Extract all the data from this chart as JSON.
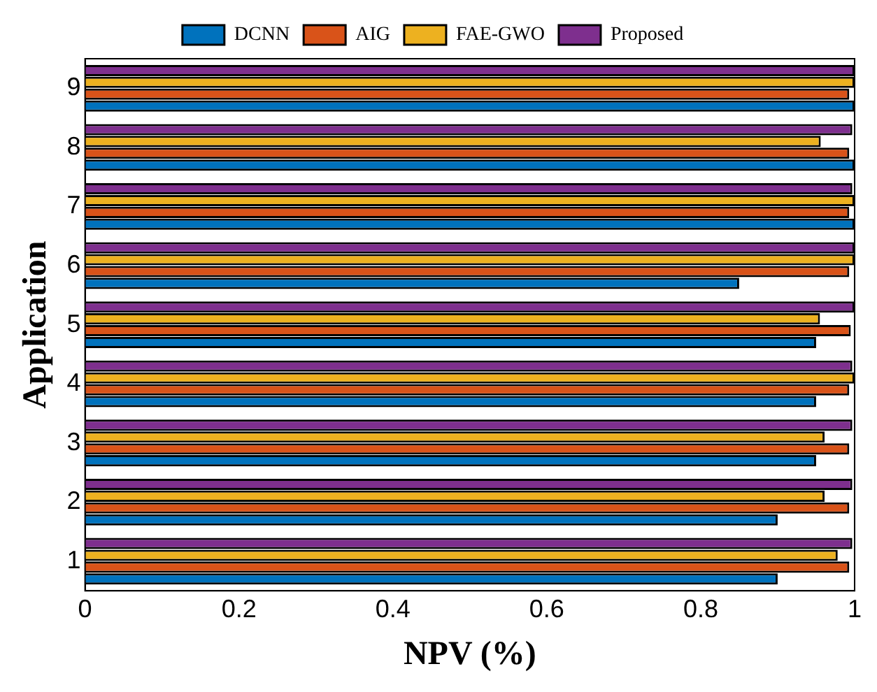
{
  "chart_data": {
    "type": "bar",
    "orientation": "horizontal",
    "xlabel": "NPV (%)",
    "ylabel": "Application",
    "categories": [
      "9",
      "8",
      "7",
      "6",
      "5",
      "4",
      "3",
      "2",
      "1"
    ],
    "series": [
      {
        "name": "DCNN",
        "color": "#0072bd",
        "values": [
          1,
          1,
          1,
          0.85,
          0.95,
          0.95,
          0.95,
          0.9,
          0.9
        ]
      },
      {
        "name": "AIG",
        "color": "#d95319",
        "values": [
          0.993,
          0.993,
          0.993,
          0.993,
          0.995,
          0.993,
          0.993,
          0.993,
          0.993
        ]
      },
      {
        "name": "FAE-GWO",
        "color": "#edb120",
        "values": [
          1,
          0.956,
          1,
          1,
          0.955,
          1,
          0.961,
          0.961,
          0.978
        ]
      },
      {
        "name": "Proposed",
        "color": "#7e2f8e",
        "values": [
          1,
          0.997,
          0.997,
          1,
          1,
          0.997,
          0.997,
          0.997,
          0.997
        ]
      }
    ],
    "xlim": [
      0,
      1
    ],
    "xticks": [
      0,
      0.2,
      0.4,
      0.6,
      0.8,
      1
    ],
    "grid": false,
    "legend": "top"
  }
}
